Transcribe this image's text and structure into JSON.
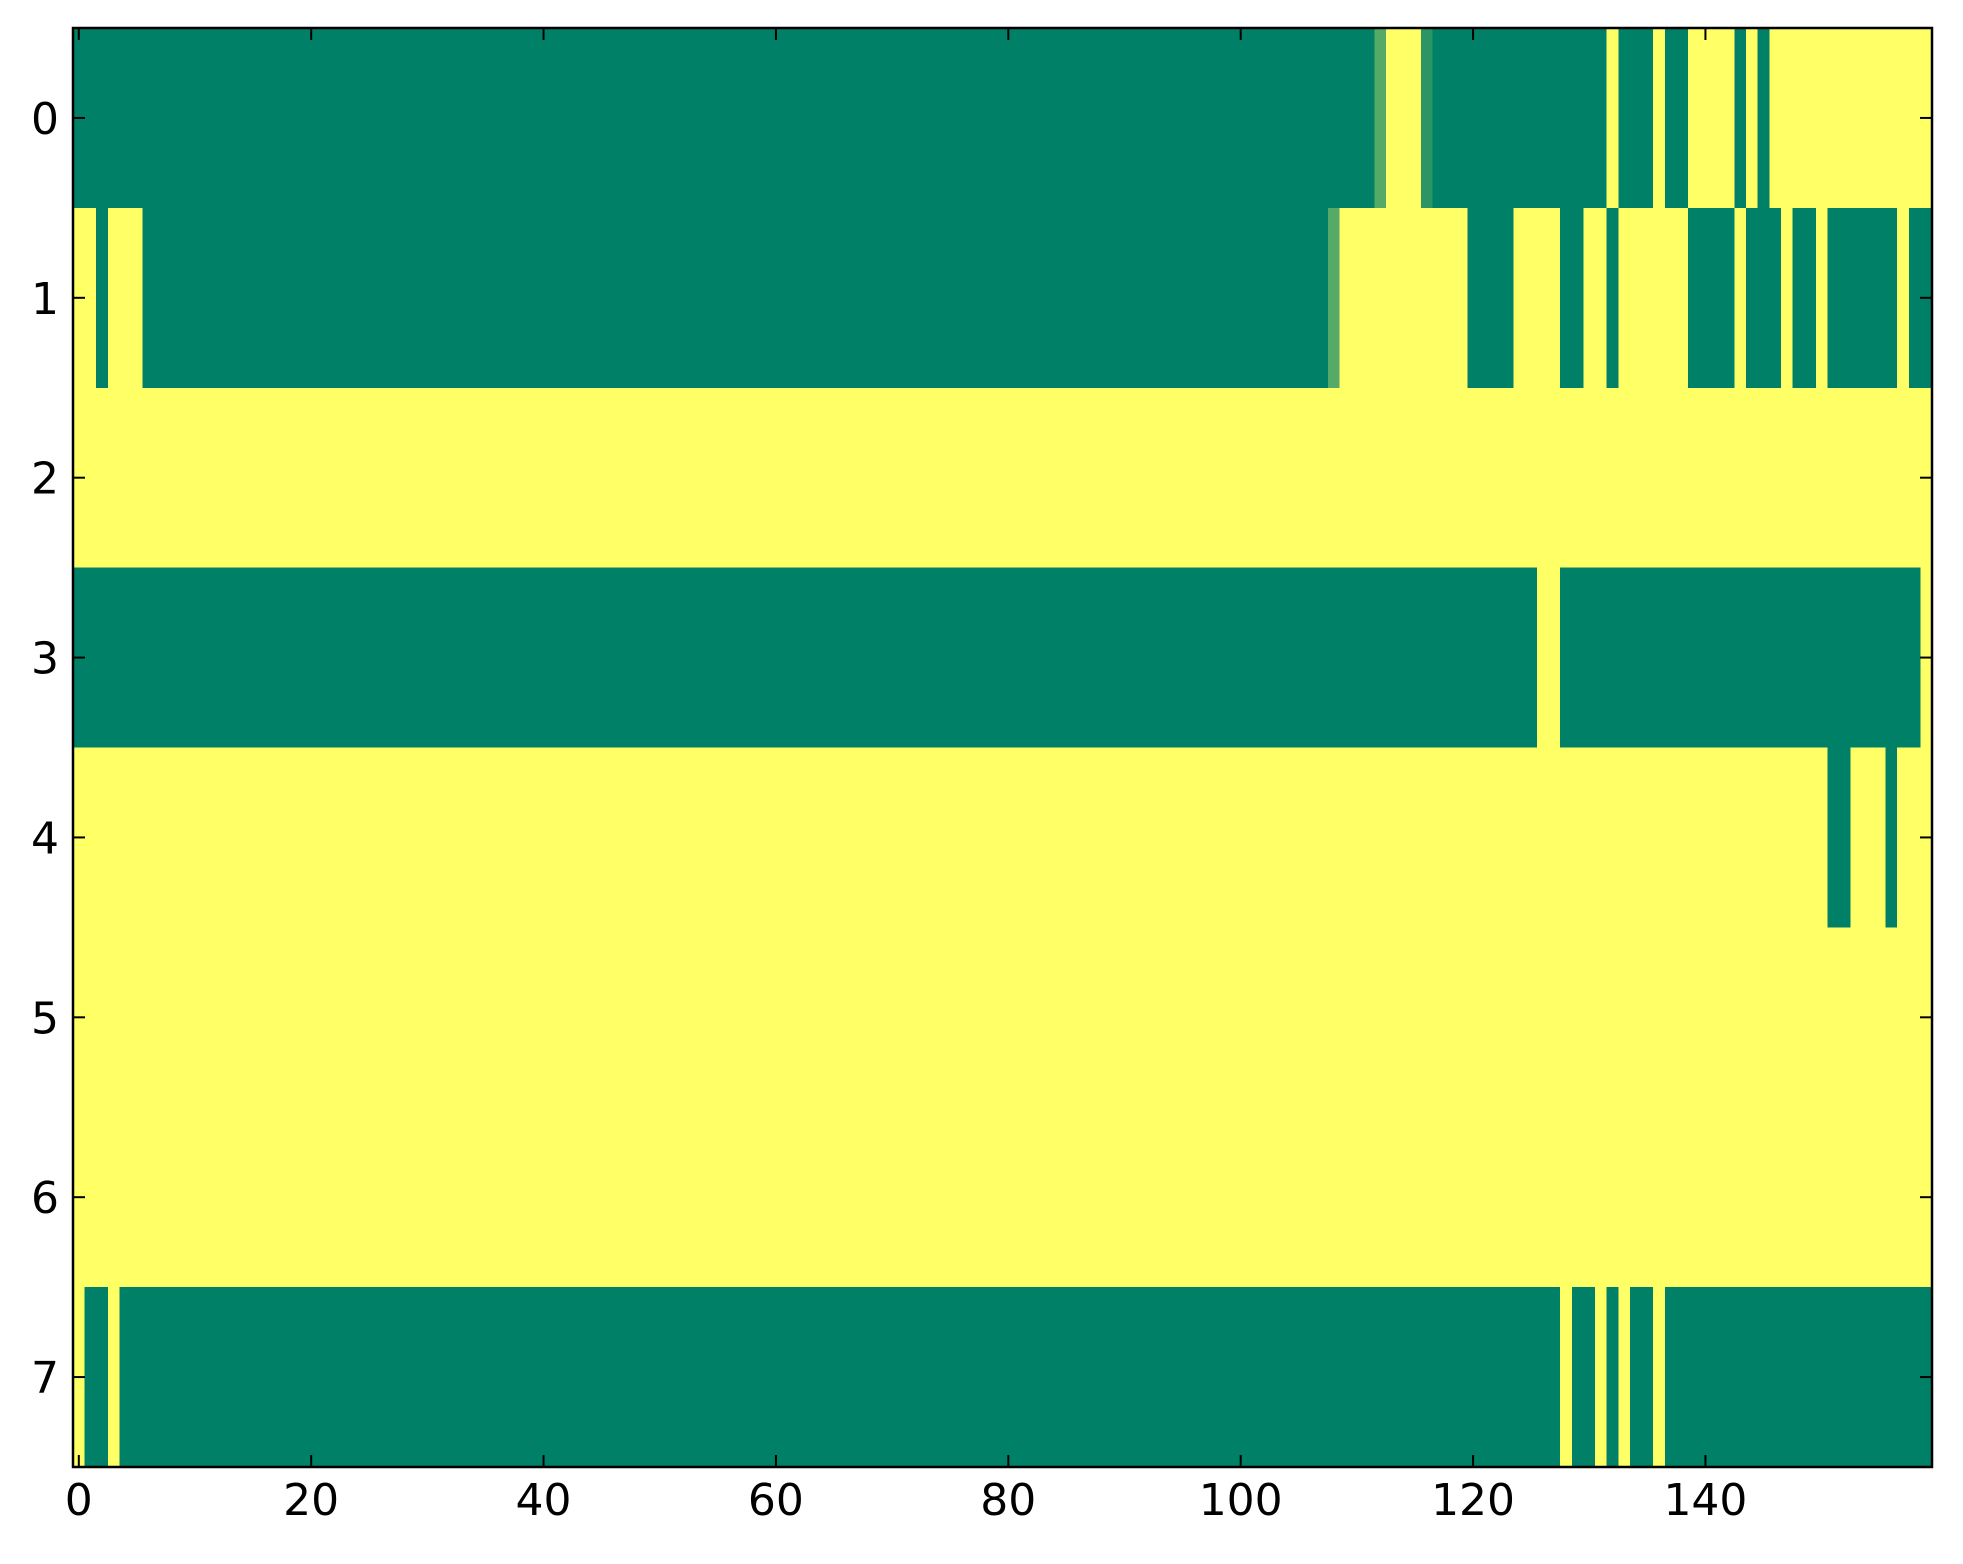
{
  "chart_data": {
    "type": "heatmap",
    "colormap": "summer",
    "zlim": [
      0,
      1
    ],
    "xlim": [
      -0.5,
      159.5
    ],
    "ylim": [
      7.5,
      -0.5
    ],
    "xticks": [
      0,
      20,
      40,
      60,
      80,
      100,
      120,
      140
    ],
    "yticks": [
      0,
      1,
      2,
      3,
      4,
      5,
      6,
      7
    ],
    "values": [
      [
        0,
        0,
        0,
        0,
        0,
        0,
        0,
        0,
        0,
        0,
        0,
        0,
        0,
        0,
        0,
        0,
        0,
        0,
        0,
        0,
        0,
        0,
        0,
        0,
        0,
        0,
        0,
        0,
        0,
        0,
        0,
        0,
        0,
        0,
        0,
        0,
        0,
        0,
        0,
        0,
        0,
        0,
        0,
        0,
        0,
        0,
        0,
        0,
        0,
        0,
        0,
        0,
        0,
        0,
        0,
        0,
        0,
        0,
        0,
        0,
        0,
        0,
        0,
        0,
        0,
        0,
        0,
        0,
        0,
        0,
        0,
        0,
        0,
        0,
        0,
        0,
        0,
        0,
        0,
        0,
        0,
        0,
        0,
        0,
        0,
        0,
        0,
        0,
        0,
        0,
        0,
        0,
        0,
        0,
        0,
        0,
        0,
        0,
        0,
        0,
        0,
        0,
        0,
        0,
        0,
        0,
        0,
        0,
        0,
        0,
        0,
        0,
        0.33,
        1,
        1,
        1,
        0.17,
        0,
        0,
        0,
        0,
        0,
        0,
        0,
        0,
        0,
        0,
        0,
        0,
        0,
        0,
        0,
        1,
        0,
        0,
        0,
        1,
        0,
        0,
        1,
        1,
        1,
        1,
        0,
        1,
        0,
        1,
        1,
        1,
        1,
        1,
        1,
        1,
        1,
        1,
        1,
        1,
        1,
        1,
        1
      ],
      [
        1,
        1,
        0,
        1,
        1,
        1,
        0,
        0,
        0,
        0,
        0,
        0,
        0,
        0,
        0,
        0,
        0,
        0,
        0,
        0,
        0,
        0,
        0,
        0,
        0,
        0,
        0,
        0,
        0,
        0,
        0,
        0,
        0,
        0,
        0,
        0,
        0,
        0,
        0,
        0,
        0,
        0,
        0,
        0,
        0,
        0,
        0,
        0,
        0,
        0,
        0,
        0,
        0,
        0,
        0,
        0,
        0,
        0,
        0,
        0,
        0,
        0,
        0,
        0,
        0,
        0,
        0,
        0,
        0,
        0,
        0,
        0,
        0,
        0,
        0,
        0,
        0,
        0,
        0,
        0,
        0,
        0,
        0,
        0,
        0,
        0,
        0,
        0,
        0,
        0,
        0,
        0,
        0,
        0,
        0,
        0,
        0,
        0,
        0,
        0,
        0,
        0,
        0,
        0,
        0,
        0,
        0,
        0,
        0.33,
        1,
        1,
        1,
        1,
        1,
        1,
        1,
        1,
        1,
        1,
        1,
        0,
        0,
        0,
        0,
        1,
        1,
        1,
        1,
        0,
        0,
        1,
        1,
        0,
        1,
        1,
        1,
        1,
        1,
        1,
        0,
        0,
        0,
        0,
        1,
        0,
        0,
        0,
        1,
        0,
        0,
        1,
        0,
        0,
        0,
        0,
        0,
        0,
        1,
        0,
        0
      ],
      [
        1,
        1,
        1,
        1,
        1,
        1,
        1,
        1,
        1,
        1,
        1,
        1,
        1,
        1,
        1,
        1,
        1,
        1,
        1,
        1,
        1,
        1,
        1,
        1,
        1,
        1,
        1,
        1,
        1,
        1,
        1,
        1,
        1,
        1,
        1,
        1,
        1,
        1,
        1,
        1,
        1,
        1,
        1,
        1,
        1,
        1,
        1,
        1,
        1,
        1,
        1,
        1,
        1,
        1,
        1,
        1,
        1,
        1,
        1,
        1,
        1,
        1,
        1,
        1,
        1,
        1,
        1,
        1,
        1,
        1,
        1,
        1,
        1,
        1,
        1,
        1,
        1,
        1,
        1,
        1,
        1,
        1,
        1,
        1,
        1,
        1,
        1,
        1,
        1,
        1,
        1,
        1,
        1,
        1,
        1,
        1,
        1,
        1,
        1,
        1,
        1,
        1,
        1,
        1,
        1,
        1,
        1,
        1,
        1,
        1,
        1,
        1,
        1,
        1,
        1,
        1,
        1,
        1,
        1,
        1,
        1,
        1,
        1,
        1,
        1,
        1,
        1,
        1,
        1,
        1,
        1,
        1,
        1,
        1,
        1,
        1,
        1,
        1,
        1,
        1,
        1,
        1,
        1,
        1,
        1,
        1,
        1,
        1,
        1,
        1,
        1,
        1,
        1,
        1,
        1,
        1,
        1,
        1,
        1,
        1
      ],
      [
        0,
        0,
        0,
        0,
        0,
        0,
        0,
        0,
        0,
        0,
        0,
        0,
        0,
        0,
        0,
        0,
        0,
        0,
        0,
        0,
        0,
        0,
        0,
        0,
        0,
        0,
        0,
        0,
        0,
        0,
        0,
        0,
        0,
        0,
        0,
        0,
        0,
        0,
        0,
        0,
        0,
        0,
        0,
        0,
        0,
        0,
        0,
        0,
        0,
        0,
        0,
        0,
        0,
        0,
        0,
        0,
        0,
        0,
        0,
        0,
        0,
        0,
        0,
        0,
        0,
        0,
        0,
        0,
        0,
        0,
        0,
        0,
        0,
        0,
        0,
        0,
        0,
        0,
        0,
        0,
        0,
        0,
        0,
        0,
        0,
        0,
        0,
        0,
        0,
        0,
        0,
        0,
        0,
        0,
        0,
        0,
        0,
        0,
        0,
        0,
        0,
        0,
        0,
        0,
        0,
        0,
        0,
        0,
        0,
        0,
        0,
        0,
        0,
        0,
        0,
        0,
        0,
        0,
        0,
        0,
        0,
        0,
        0,
        0,
        0,
        0,
        1,
        1,
        0,
        0,
        0,
        0,
        0,
        0,
        0,
        0,
        0,
        0,
        0,
        0,
        0,
        0,
        0,
        0,
        0,
        0,
        0,
        0,
        0,
        0,
        0,
        0,
        0,
        0,
        0,
        0,
        0,
        0,
        0,
        1
      ],
      [
        1,
        1,
        1,
        1,
        1,
        1,
        1,
        1,
        1,
        1,
        1,
        1,
        1,
        1,
        1,
        1,
        1,
        1,
        1,
        1,
        1,
        1,
        1,
        1,
        1,
        1,
        1,
        1,
        1,
        1,
        1,
        1,
        1,
        1,
        1,
        1,
        1,
        1,
        1,
        1,
        1,
        1,
        1,
        1,
        1,
        1,
        1,
        1,
        1,
        1,
        1,
        1,
        1,
        1,
        1,
        1,
        1,
        1,
        1,
        1,
        1,
        1,
        1,
        1,
        1,
        1,
        1,
        1,
        1,
        1,
        1,
        1,
        1,
        1,
        1,
        1,
        1,
        1,
        1,
        1,
        1,
        1,
        1,
        1,
        1,
        1,
        1,
        1,
        1,
        1,
        1,
        1,
        1,
        1,
        1,
        1,
        1,
        1,
        1,
        1,
        1,
        1,
        1,
        1,
        1,
        1,
        1,
        1,
        1,
        1,
        1,
        1,
        1,
        1,
        1,
        1,
        1,
        1,
        1,
        1,
        1,
        1,
        1,
        1,
        1,
        1,
        1,
        1,
        1,
        1,
        1,
        1,
        1,
        1,
        1,
        1,
        1,
        1,
        1,
        1,
        1,
        1,
        1,
        1,
        1,
        1,
        1,
        1,
        1,
        1,
        1,
        0,
        0,
        1,
        1,
        1,
        0,
        1,
        1,
        1
      ],
      [
        1,
        1,
        1,
        1,
        1,
        1,
        1,
        1,
        1,
        1,
        1,
        1,
        1,
        1,
        1,
        1,
        1,
        1,
        1,
        1,
        1,
        1,
        1,
        1,
        1,
        1,
        1,
        1,
        1,
        1,
        1,
        1,
        1,
        1,
        1,
        1,
        1,
        1,
        1,
        1,
        1,
        1,
        1,
        1,
        1,
        1,
        1,
        1,
        1,
        1,
        1,
        1,
        1,
        1,
        1,
        1,
        1,
        1,
        1,
        1,
        1,
        1,
        1,
        1,
        1,
        1,
        1,
        1,
        1,
        1,
        1,
        1,
        1,
        1,
        1,
        1,
        1,
        1,
        1,
        1,
        1,
        1,
        1,
        1,
        1,
        1,
        1,
        1,
        1,
        1,
        1,
        1,
        1,
        1,
        1,
        1,
        1,
        1,
        1,
        1,
        1,
        1,
        1,
        1,
        1,
        1,
        1,
        1,
        1,
        1,
        1,
        1,
        1,
        1,
        1,
        1,
        1,
        1,
        1,
        1,
        1,
        1,
        1,
        1,
        1,
        1,
        1,
        1,
        1,
        1,
        1,
        1,
        1,
        1,
        1,
        1,
        1,
        1,
        1,
        1,
        1,
        1,
        1,
        1,
        1,
        1,
        1,
        1,
        1,
        1,
        1,
        1,
        1,
        1,
        1,
        1,
        1,
        1,
        1,
        1
      ],
      [
        1,
        1,
        1,
        1,
        1,
        1,
        1,
        1,
        1,
        1,
        1,
        1,
        1,
        1,
        1,
        1,
        1,
        1,
        1,
        1,
        1,
        1,
        1,
        1,
        1,
        1,
        1,
        1,
        1,
        1,
        1,
        1,
        1,
        1,
        1,
        1,
        1,
        1,
        1,
        1,
        1,
        1,
        1,
        1,
        1,
        1,
        1,
        1,
        1,
        1,
        1,
        1,
        1,
        1,
        1,
        1,
        1,
        1,
        1,
        1,
        1,
        1,
        1,
        1,
        1,
        1,
        1,
        1,
        1,
        1,
        1,
        1,
        1,
        1,
        1,
        1,
        1,
        1,
        1,
        1,
        1,
        1,
        1,
        1,
        1,
        1,
        1,
        1,
        1,
        1,
        1,
        1,
        1,
        1,
        1,
        1,
        1,
        1,
        1,
        1,
        1,
        1,
        1,
        1,
        1,
        1,
        1,
        1,
        1,
        1,
        1,
        1,
        1,
        1,
        1,
        1,
        1,
        1,
        1,
        1,
        1,
        1,
        1,
        1,
        1,
        1,
        1,
        1,
        1,
        1,
        1,
        1,
        1,
        1,
        1,
        1,
        1,
        1,
        1,
        1,
        1,
        1,
        1,
        1,
        1,
        1,
        1,
        1,
        1,
        1,
        1,
        1,
        1,
        1,
        1,
        1,
        1,
        1,
        1,
        1
      ],
      [
        1,
        0,
        0,
        1,
        0,
        0,
        0,
        0,
        0,
        0,
        0,
        0,
        0,
        0,
        0,
        0,
        0,
        0,
        0,
        0,
        0,
        0,
        0,
        0,
        0,
        0,
        0,
        0,
        0,
        0,
        0,
        0,
        0,
        0,
        0,
        0,
        0,
        0,
        0,
        0,
        0,
        0,
        0,
        0,
        0,
        0,
        0,
        0,
        0,
        0,
        0,
        0,
        0,
        0,
        0,
        0,
        0,
        0,
        0,
        0,
        0,
        0,
        0,
        0,
        0,
        0,
        0,
        0,
        0,
        0,
        0,
        0,
        0,
        0,
        0,
        0,
        0,
        0,
        0,
        0,
        0,
        0,
        0,
        0,
        0,
        0,
        0,
        0,
        0,
        0,
        0,
        0,
        0,
        0,
        0,
        0,
        0,
        0,
        0,
        0,
        0,
        0,
        0,
        0,
        0,
        0,
        0,
        0,
        0,
        0,
        0,
        0,
        0,
        0,
        0,
        0,
        0,
        0,
        0,
        0,
        0,
        0,
        0,
        0,
        0,
        0,
        0,
        0,
        1,
        0,
        0,
        1,
        0,
        1,
        0,
        0,
        1,
        0,
        0,
        0,
        0,
        0,
        0,
        0,
        0,
        0,
        0,
        0,
        0,
        0,
        0,
        0,
        0,
        0,
        0,
        0,
        0,
        0,
        0,
        0
      ]
    ]
  }
}
